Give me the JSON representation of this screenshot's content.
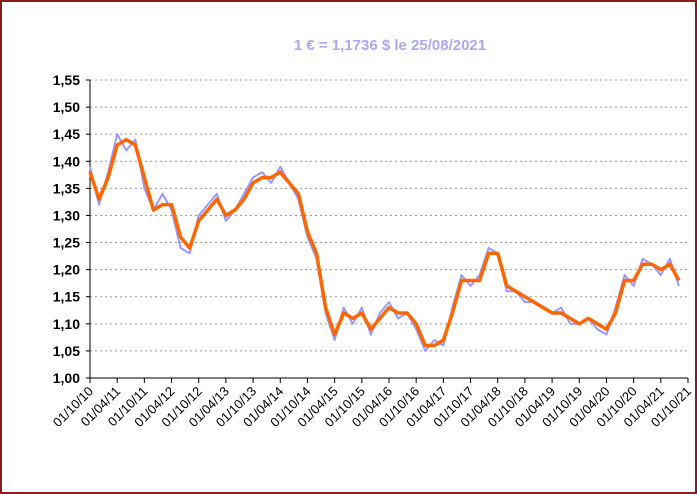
{
  "chart_data": {
    "type": "line",
    "title": "1 € = 1,1736 $ le 25/08/2021",
    "x": [
      "01/10/10",
      "01/12/10",
      "01/02/11",
      "01/04/11",
      "01/06/11",
      "01/08/11",
      "01/10/11",
      "01/12/11",
      "01/02/12",
      "01/04/12",
      "01/06/12",
      "01/08/12",
      "01/10/12",
      "01/12/12",
      "01/02/13",
      "01/04/13",
      "01/06/13",
      "01/08/13",
      "01/10/13",
      "01/12/13",
      "01/02/14",
      "01/04/14",
      "01/06/14",
      "01/08/14",
      "01/10/14",
      "01/12/14",
      "01/02/15",
      "01/04/15",
      "01/06/15",
      "01/08/15",
      "01/10/15",
      "01/12/15",
      "01/02/16",
      "01/04/16",
      "01/06/16",
      "01/08/16",
      "01/10/16",
      "01/12/16",
      "01/02/17",
      "01/04/17",
      "01/06/17",
      "01/08/17",
      "01/10/17",
      "01/12/17",
      "01/02/18",
      "01/04/18",
      "01/06/18",
      "01/08/18",
      "01/10/18",
      "01/12/18",
      "01/02/19",
      "01/04/19",
      "01/06/19",
      "01/08/19",
      "01/10/19",
      "01/12/19",
      "01/02/20",
      "01/04/20",
      "01/06/20",
      "01/08/20",
      "01/10/20",
      "01/12/20",
      "01/02/21",
      "01/04/21",
      "01/06/21",
      "01/08/21"
    ],
    "series": [
      {
        "color": "#9999ff",
        "values": [
          1.39,
          1.32,
          1.38,
          1.45,
          1.42,
          1.44,
          1.35,
          1.31,
          1.34,
          1.31,
          1.24,
          1.23,
          1.3,
          1.32,
          1.34,
          1.29,
          1.31,
          1.34,
          1.37,
          1.38,
          1.36,
          1.39,
          1.36,
          1.33,
          1.26,
          1.22,
          1.12,
          1.07,
          1.13,
          1.1,
          1.13,
          1.08,
          1.12,
          1.14,
          1.11,
          1.12,
          1.09,
          1.05,
          1.07,
          1.06,
          1.13,
          1.19,
          1.17,
          1.19,
          1.24,
          1.23,
          1.16,
          1.16,
          1.14,
          1.14,
          1.13,
          1.12,
          1.13,
          1.1,
          1.1,
          1.11,
          1.09,
          1.08,
          1.13,
          1.19,
          1.17,
          1.22,
          1.21,
          1.19,
          1.22,
          1.17
        ]
      },
      {
        "color": "#ff6600",
        "values": [
          1.38,
          1.33,
          1.37,
          1.43,
          1.44,
          1.43,
          1.37,
          1.31,
          1.32,
          1.32,
          1.26,
          1.24,
          1.29,
          1.31,
          1.33,
          1.3,
          1.31,
          1.33,
          1.36,
          1.37,
          1.37,
          1.38,
          1.36,
          1.34,
          1.27,
          1.23,
          1.13,
          1.08,
          1.12,
          1.11,
          1.12,
          1.09,
          1.11,
          1.13,
          1.12,
          1.12,
          1.1,
          1.06,
          1.06,
          1.07,
          1.12,
          1.18,
          1.18,
          1.18,
          1.23,
          1.23,
          1.17,
          1.16,
          1.15,
          1.14,
          1.13,
          1.12,
          1.12,
          1.11,
          1.1,
          1.11,
          1.1,
          1.09,
          1.12,
          1.18,
          1.18,
          1.21,
          1.21,
          1.2,
          1.21,
          1.18
        ]
      }
    ],
    "xlim": [
      "01/10/10",
      "01/10/21"
    ],
    "xticks": [
      "01/10/10",
      "01/04/11",
      "01/10/11",
      "01/04/12",
      "01/10/12",
      "01/04/13",
      "01/10/13",
      "01/04/14",
      "01/10/14",
      "01/04/15",
      "01/10/15",
      "01/04/16",
      "01/10/16",
      "01/04/17",
      "01/10/17",
      "01/04/18",
      "01/10/18",
      "01/04/19",
      "01/10/19",
      "01/04/20",
      "01/10/20",
      "01/04/21",
      "01/10/21"
    ],
    "ylim": [
      1.0,
      1.55
    ],
    "yticks": [
      {
        "value": 1.0,
        "label": "1,00"
      },
      {
        "value": 1.05,
        "label": "1,05"
      },
      {
        "value": 1.1,
        "label": "1,10"
      },
      {
        "value": 1.15,
        "label": "1,15"
      },
      {
        "value": 1.2,
        "label": "1,20"
      },
      {
        "value": 1.25,
        "label": "1,25"
      },
      {
        "value": 1.3,
        "label": "1,30"
      },
      {
        "value": 1.35,
        "label": "1,35"
      },
      {
        "value": 1.4,
        "label": "1,40"
      },
      {
        "value": 1.45,
        "label": "1,45"
      },
      {
        "value": 1.5,
        "label": "1,50"
      },
      {
        "value": 1.55,
        "label": "1,55"
      }
    ],
    "grid": true
  }
}
